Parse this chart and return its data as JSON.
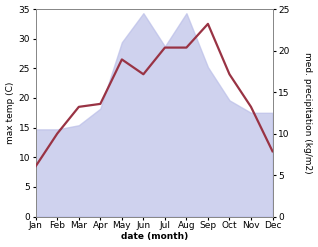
{
  "months": [
    "Jan",
    "Feb",
    "Mar",
    "Apr",
    "May",
    "Jun",
    "Jul",
    "Aug",
    "Sep",
    "Oct",
    "Nov",
    "Dec"
  ],
  "temp_max": [
    8.5,
    14.0,
    18.5,
    19.0,
    26.5,
    24.0,
    28.5,
    28.5,
    32.5,
    24.0,
    18.5,
    11.0
  ],
  "precipitation": [
    10.5,
    10.5,
    11.0,
    13.0,
    21.0,
    24.5,
    20.5,
    24.5,
    18.0,
    14.0,
    12.5,
    12.5
  ],
  "temp_ylim": [
    0,
    35
  ],
  "precip_ylim": [
    0,
    25
  ],
  "temp_ticks": [
    0,
    5,
    10,
    15,
    20,
    25,
    30,
    35
  ],
  "precip_ticks": [
    0,
    5,
    10,
    15,
    20,
    25
  ],
  "temp_color": "#993344",
  "precip_fill_color": "#bbbfe8",
  "precip_fill_alpha": 0.7,
  "xlabel": "date (month)",
  "ylabel_left": "max temp (C)",
  "ylabel_right": "med. precipitation (kg/m2)",
  "bg_color": "#ffffff",
  "title_fontsize": 7,
  "axis_fontsize": 6.5,
  "tick_fontsize": 6.5,
  "line_width": 1.6
}
